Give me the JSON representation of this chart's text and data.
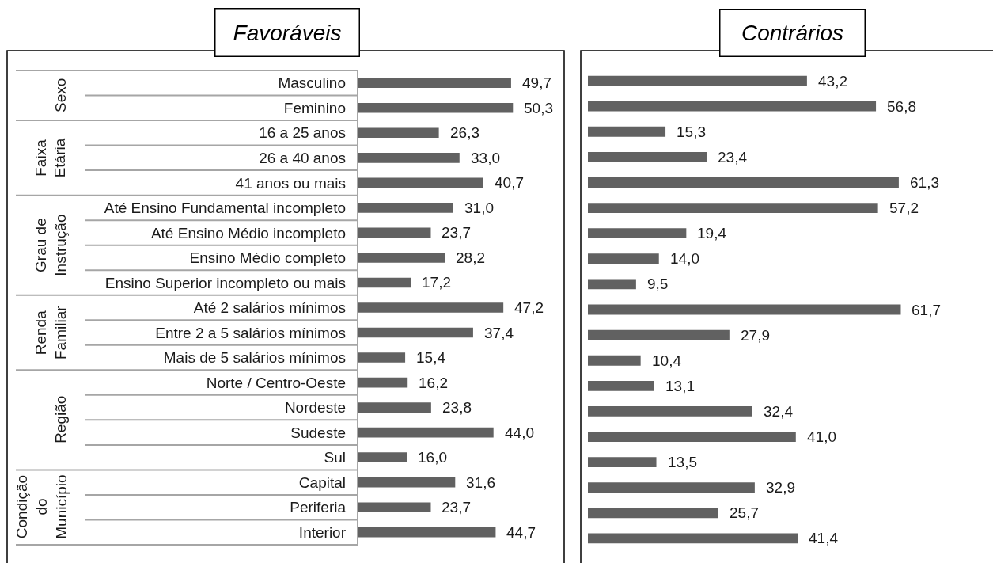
{
  "chart_data": [
    {
      "type": "bar",
      "title": "Favoráveis",
      "orientation": "horizontal",
      "tick_labels": "y",
      "color": "#616161",
      "categories": [
        "Masculino",
        "Feminino",
        "16 a 25 anos",
        "26 a 40 anos",
        "41 anos ou mais",
        "Até Ensino Fundamental incompleto",
        "Até Ensino Médio incompleto",
        "Ensino Médio completo",
        "Ensino Superior incompleto ou mais",
        "Até 2 salários mínimos",
        "Entre 2 a 5 salários mínimos",
        "Mais de 5 salários mínimos",
        "Norte / Centro-Oeste",
        "Nordeste",
        "Sudeste",
        "Sul",
        "Capital",
        "Periferia",
        "Interior"
      ],
      "values": [
        49.7,
        50.3,
        26.3,
        33.0,
        40.7,
        31.0,
        23.7,
        28.2,
        17.2,
        47.2,
        37.4,
        15.4,
        16.2,
        23.8,
        44.0,
        16.0,
        31.6,
        23.7,
        44.7
      ],
      "value_labels": [
        "49,7",
        "50,3",
        "26,3",
        "33,0",
        "40,7",
        "31,0",
        "23,7",
        "28,2",
        "17,2",
        "47,2",
        "37,4",
        "15,4",
        "16,2",
        "23,8",
        "44,0",
        "16,0",
        "31,6",
        "23,7",
        "44,7"
      ],
      "annotations": [
        "Sexo",
        "Faixa Etária",
        "Grau de Instrução",
        "Renda Familiar",
        "Região",
        "Condição do Município"
      ]
    },
    {
      "type": "bar",
      "title": "Contrários",
      "orientation": "horizontal",
      "tick_labels": false,
      "color": "#616161",
      "categories": [
        null,
        null,
        null,
        null,
        null,
        null,
        null,
        null,
        null,
        null,
        null,
        null,
        null,
        null,
        null,
        null,
        null,
        null,
        null
      ],
      "values": [
        43.2,
        56.8,
        15.3,
        23.4,
        61.3,
        57.2,
        19.4,
        14.0,
        9.5,
        61.7,
        27.9,
        10.4,
        13.1,
        32.4,
        41.0,
        13.5,
        32.9,
        25.7,
        41.4
      ],
      "value_labels": [
        "43,2",
        "56,8",
        "15,3",
        "23,4",
        "61,3",
        "57,2",
        "19,4",
        "14,0",
        "9,5",
        "61,7",
        "27,9",
        "10,4",
        "13,1",
        "32,4",
        "41,0",
        "13,5",
        "32,9",
        "25,7",
        "41,4"
      ]
    }
  ]
}
